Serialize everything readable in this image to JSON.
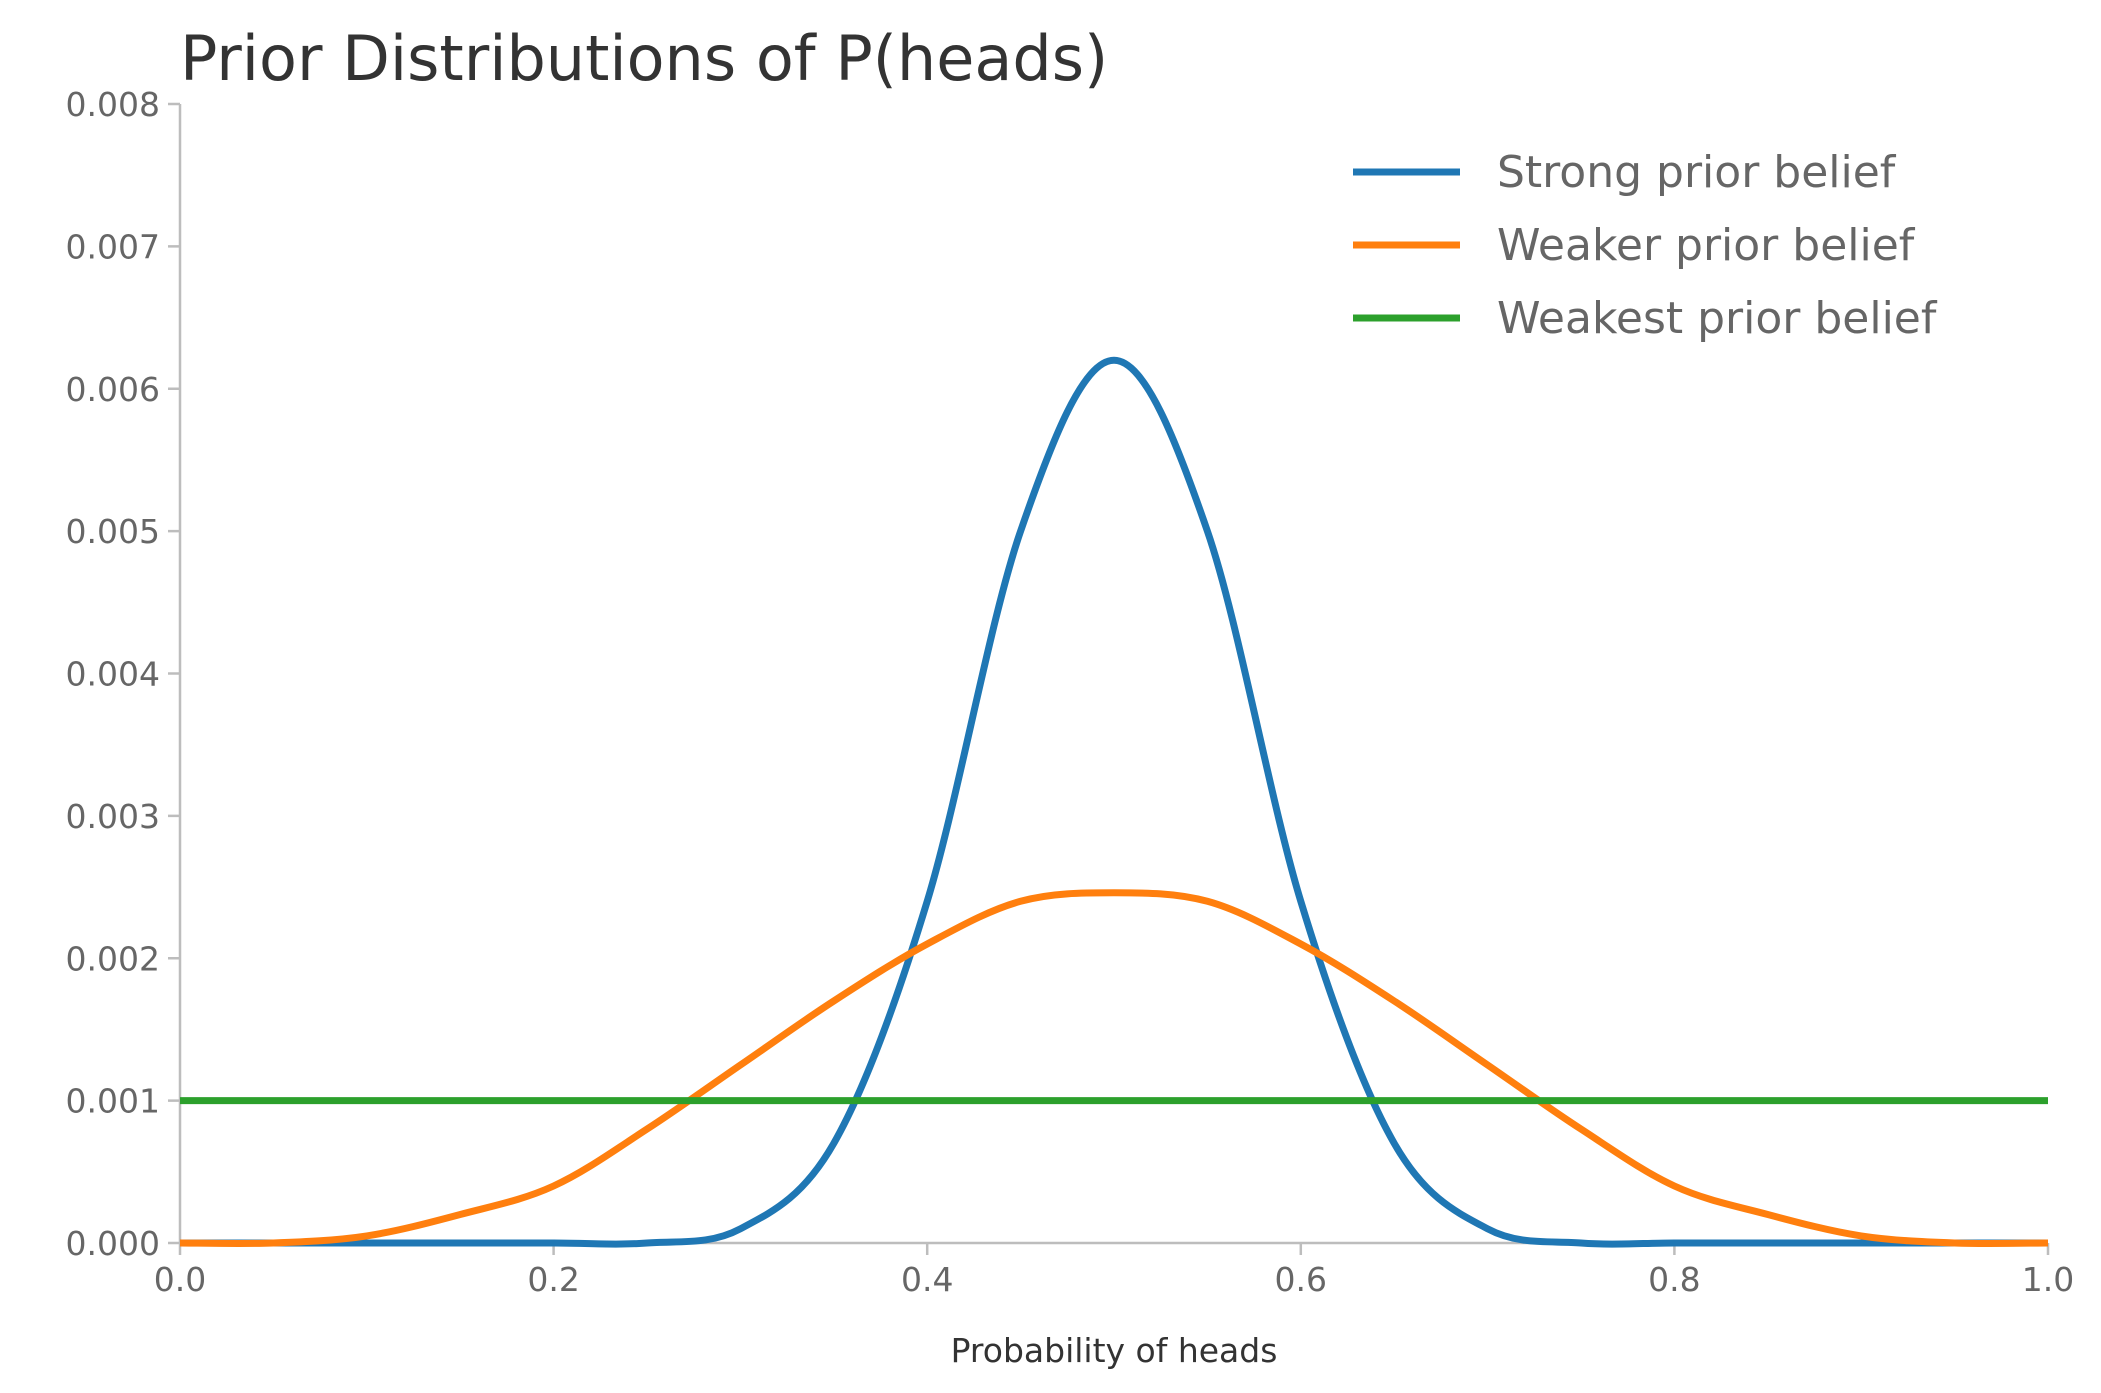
{
  "chart_data": {
    "type": "line",
    "title": "Prior Distributions of P(heads)",
    "xlabel": "Probability of heads",
    "ylabel": "",
    "xlim": [
      0.0,
      1.0
    ],
    "ylim": [
      0.0,
      0.008
    ],
    "x_ticks": [
      "0.0",
      "0.2",
      "0.4",
      "0.6",
      "0.8",
      "1.0"
    ],
    "y_ticks": [
      "0.000",
      "0.001",
      "0.002",
      "0.003",
      "0.004",
      "0.005",
      "0.006",
      "0.007",
      "0.008"
    ],
    "grid": false,
    "legend_position": "top-right",
    "x": [
      0.0,
      0.05,
      0.1,
      0.15,
      0.2,
      0.25,
      0.3,
      0.35,
      0.4,
      0.45,
      0.5,
      0.55,
      0.6,
      0.65,
      0.7,
      0.75,
      0.8,
      0.85,
      0.9,
      0.95,
      1.0
    ],
    "series": [
      {
        "name": "Strong prior belief",
        "color": "#1f77b4",
        "values": [
          0.0,
          0.0,
          0.0,
          0.0,
          0.0,
          0.0,
          0.0001,
          0.0007,
          0.0024,
          0.005,
          0.0062,
          0.005,
          0.0024,
          0.0007,
          0.0001,
          0.0,
          0.0,
          0.0,
          0.0,
          0.0,
          0.0
        ]
      },
      {
        "name": "Weaker prior belief",
        "color": "#ff7f0e",
        "values": [
          0.0,
          0.0,
          5e-05,
          0.0002,
          0.0004,
          0.0008,
          0.00125,
          0.0017,
          0.0021,
          0.0024,
          0.00246,
          0.0024,
          0.0021,
          0.0017,
          0.00125,
          0.0008,
          0.0004,
          0.0002,
          5e-05,
          0.0,
          0.0
        ]
      },
      {
        "name": "Weakest prior belief",
        "color": "#2ca02c",
        "values": [
          0.001,
          0.001,
          0.001,
          0.001,
          0.001,
          0.001,
          0.001,
          0.001,
          0.001,
          0.001,
          0.001,
          0.001,
          0.001,
          0.001,
          0.001,
          0.001,
          0.001,
          0.001,
          0.001,
          0.001,
          0.001
        ]
      }
    ]
  }
}
